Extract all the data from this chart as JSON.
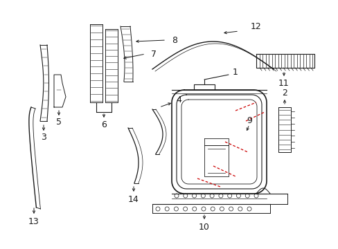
{
  "bg_color": "#ffffff",
  "line_color": "#1a1a1a",
  "red_color": "#cc0000",
  "fig_width": 4.89,
  "fig_height": 3.6,
  "dpi": 100
}
